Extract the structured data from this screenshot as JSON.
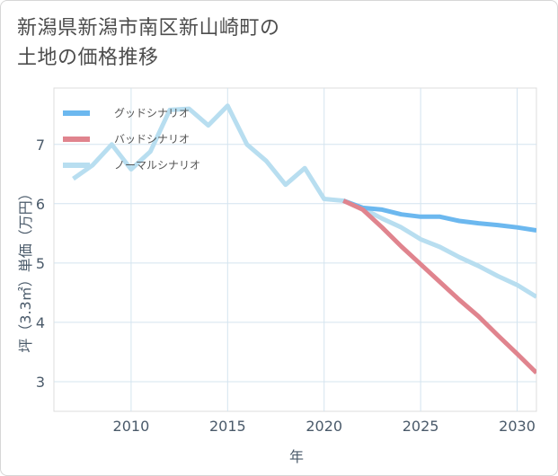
{
  "title_line1": "新潟県新潟市南区新山崎町の",
  "title_line2": "土地の価格推移",
  "chart_data": {
    "type": "line",
    "title": "新潟県新潟市南区新山崎町の土地の価格推移",
    "xlabel": "年",
    "ylabel": "坪（3.3㎡）単価（万円）",
    "xlim": [
      2006,
      2031
    ],
    "ylim": [
      2.5,
      7.95
    ],
    "xticks": [
      2010,
      2015,
      2020,
      2025,
      2030
    ],
    "yticks": [
      3,
      4,
      5,
      6,
      7
    ],
    "legend_position": "top-left",
    "series": [
      {
        "name": "グッドシナリオ",
        "color": "#6cb8ef",
        "x": [
          2021,
          2022,
          2023,
          2024,
          2025,
          2026,
          2027,
          2028,
          2029,
          2030,
          2031
        ],
        "values": [
          6.05,
          5.93,
          5.9,
          5.82,
          5.78,
          5.78,
          5.71,
          5.67,
          5.64,
          5.6,
          5.55
        ]
      },
      {
        "name": "バッドシナリオ",
        "color": "#e0848e",
        "x": [
          2021,
          2022,
          2023,
          2024,
          2025,
          2026,
          2027,
          2028,
          2029,
          2030,
          2031
        ],
        "values": [
          6.05,
          5.9,
          5.6,
          5.28,
          4.98,
          4.68,
          4.38,
          4.1,
          3.78,
          3.47,
          3.15
        ]
      },
      {
        "name": "ノーマルシナリオ",
        "color": "#b8def0",
        "x": [
          2007,
          2008,
          2009,
          2010,
          2011,
          2012,
          2013,
          2014,
          2015,
          2016,
          2017,
          2018,
          2019,
          2020,
          2021,
          2022,
          2023,
          2024,
          2025,
          2026,
          2027,
          2028,
          2029,
          2030,
          2031
        ],
        "values": [
          6.42,
          6.65,
          7.0,
          6.58,
          6.88,
          7.58,
          7.6,
          7.32,
          7.65,
          7.0,
          6.72,
          6.32,
          6.6,
          6.08,
          6.05,
          5.92,
          5.75,
          5.6,
          5.4,
          5.27,
          5.1,
          4.95,
          4.78,
          4.63,
          4.43
        ]
      }
    ]
  }
}
